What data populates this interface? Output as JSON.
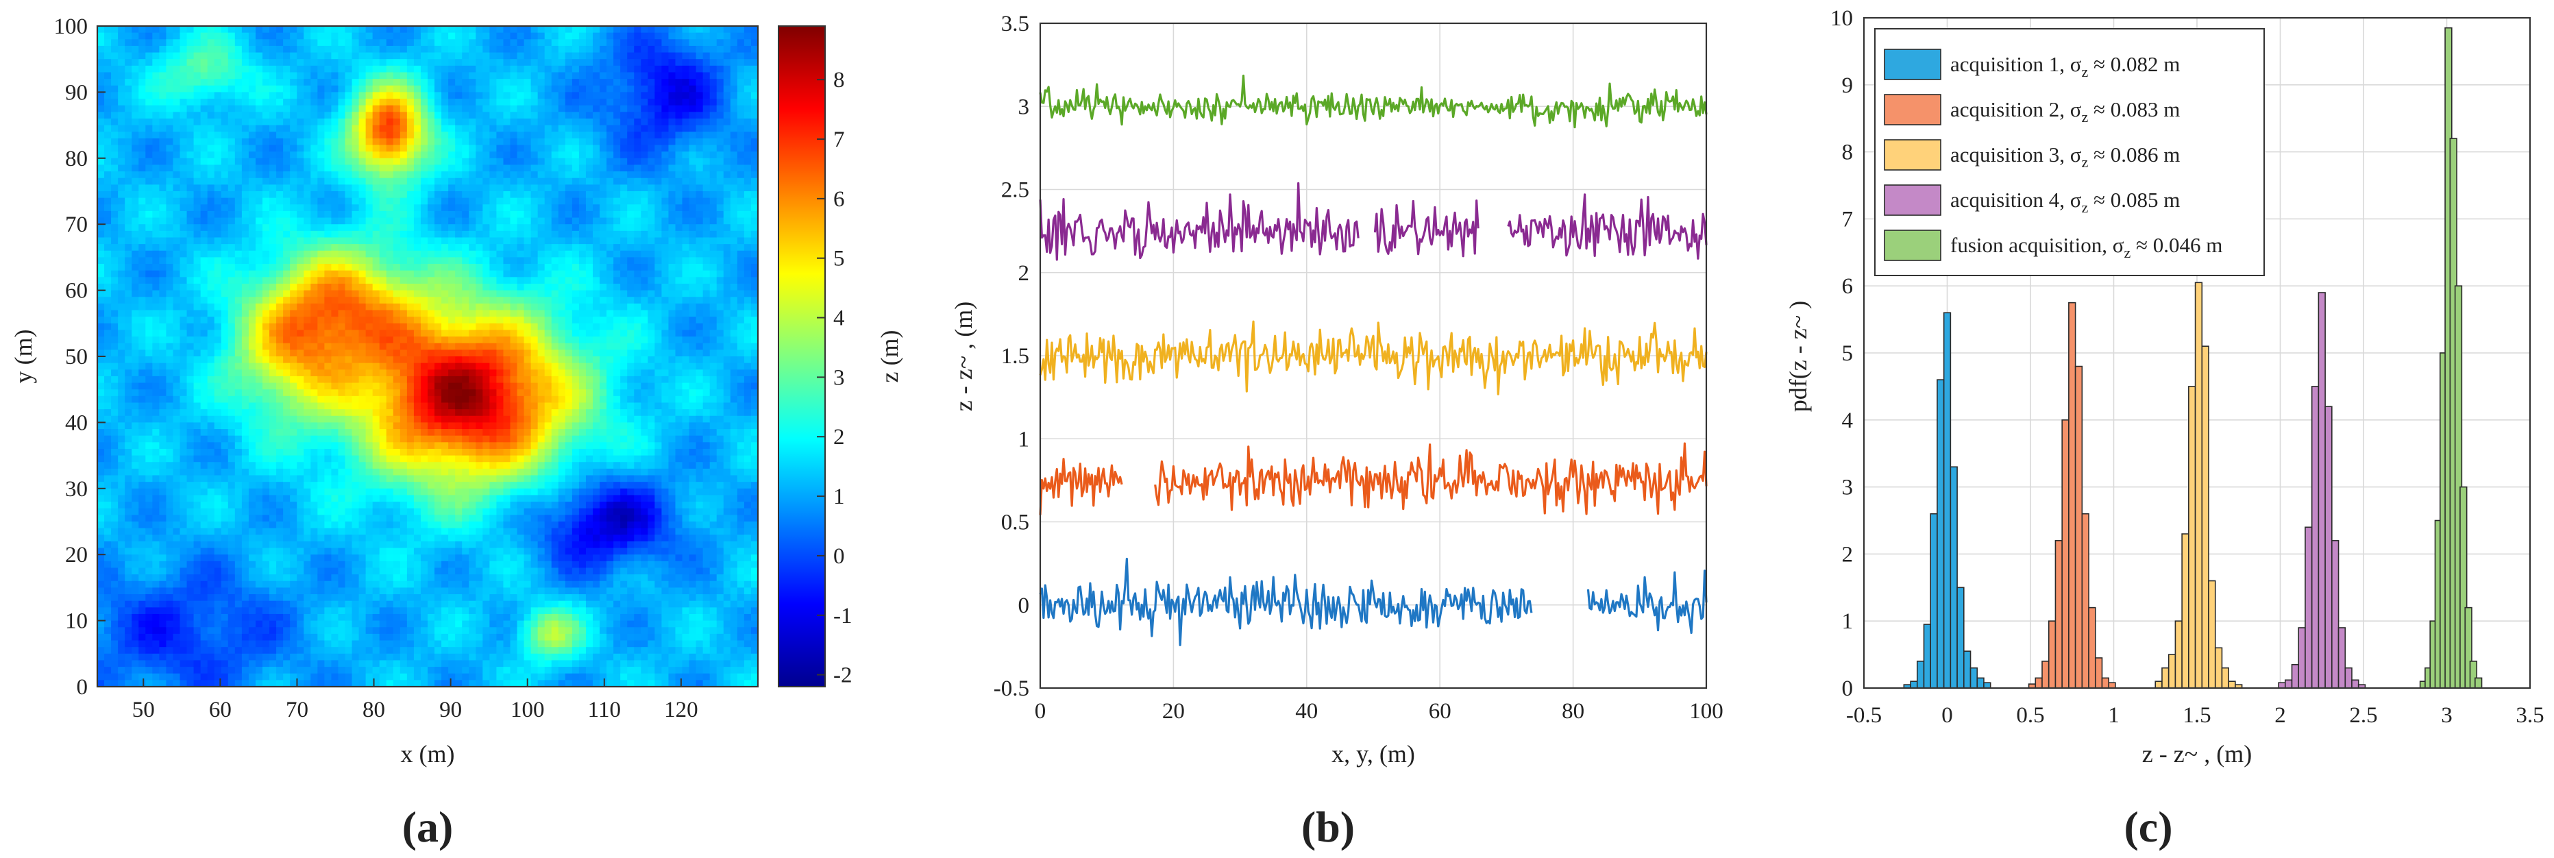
{
  "chart_data": [
    {
      "id": "a",
      "type": "heatmap",
      "panel_label": "(a)",
      "title": "",
      "xlabel": "x (m)",
      "ylabel": "y (m)",
      "xlim": [
        44,
        130
      ],
      "ylim": [
        0,
        100
      ],
      "xticks": [
        "50",
        "60",
        "70",
        "80",
        "90",
        "100",
        "110",
        "120"
      ],
      "yticks": [
        "0",
        "10",
        "20",
        "30",
        "40",
        "50",
        "60",
        "70",
        "80",
        "90",
        "100"
      ],
      "colorbar": {
        "label": "z (m)",
        "range": [
          -2.2,
          8.9
        ],
        "ticks": [
          "-2",
          "-1",
          "0",
          "1",
          "2",
          "3",
          "4",
          "5",
          "6",
          "7",
          "8"
        ]
      },
      "surface_features": [
        {
          "x": 90,
          "y": 45,
          "z": 8.2
        },
        {
          "x": 97,
          "y": 40,
          "z": 8.5
        },
        {
          "x": 82,
          "y": 85,
          "z": 7.8
        },
        {
          "x": 76,
          "y": 60,
          "z": 5.0
        },
        {
          "x": 110,
          "y": 25,
          "z": -1.0
        },
        {
          "x": 118,
          "y": 90,
          "z": -0.8
        },
        {
          "x": 100,
          "y": 92,
          "z": 0.6
        },
        {
          "x": 55,
          "y": 10,
          "z": 0.5
        },
        {
          "x": 103,
          "y": 8,
          "z": 4.0
        },
        {
          "x": 58,
          "y": 93,
          "z": 3.0
        }
      ]
    },
    {
      "id": "b",
      "type": "line",
      "panel_label": "(b)",
      "title": "",
      "xlabel": "x, y, (m)",
      "ylabel": "z - z~ , (m)",
      "xlim": [
        0,
        100
      ],
      "ylim": [
        -0.5,
        3.5
      ],
      "xticks": [
        "0",
        "20",
        "40",
        "60",
        "80",
        "100"
      ],
      "yticks": [
        "-0.5",
        "0",
        "0.5",
        "1",
        "1.5",
        "2",
        "2.5",
        "3",
        "3.5"
      ],
      "series": [
        {
          "name": "acquisition 1",
          "color": "#1f77c4",
          "offset": 0.0,
          "noise": 0.08,
          "gaps": [
            [
              74,
              82
            ]
          ]
        },
        {
          "name": "acquisition 2",
          "color": "#ea5b1b",
          "offset": 0.75,
          "noise": 0.08,
          "gaps": [
            [
              12.5,
              14
            ],
            [
              14.5,
              17
            ]
          ]
        },
        {
          "name": "acquisition 3",
          "color": "#f0b11f",
          "offset": 1.5,
          "noise": 0.085,
          "gaps": []
        },
        {
          "name": "acquisition 4",
          "color": "#8a2a91",
          "offset": 2.25,
          "noise": 0.085,
          "gaps": [
            [
              48,
              50
            ],
            [
              66,
              70
            ]
          ]
        },
        {
          "name": "fusion acquisition",
          "color": "#5ba827",
          "offset": 3.0,
          "noise": 0.045,
          "gaps": []
        }
      ]
    },
    {
      "id": "c",
      "type": "bar",
      "panel_label": "(c)",
      "title": "",
      "xlabel": "z - z~ , (m)",
      "ylabel": "pdf(z - z~ )",
      "xlim": [
        -0.5,
        3.5
      ],
      "ylim": [
        0,
        10
      ],
      "xticks": [
        "-0.5",
        "0",
        "0.5",
        "1",
        "1.5",
        "2",
        "2.5",
        "3",
        "3.5"
      ],
      "yticks": [
        "0",
        "1",
        "2",
        "3",
        "4",
        "5",
        "6",
        "7",
        "8",
        "9",
        "10"
      ],
      "bin_width": 0.04,
      "series": [
        {
          "name": "acquisition 1",
          "sigma_label": "0.082 m",
          "color": "#2ea8e0",
          "bin_starts": [
            -0.26,
            -0.22,
            -0.18,
            -0.14,
            -0.1,
            -0.06,
            -0.02,
            0.02,
            0.06,
            0.1,
            0.14,
            0.18,
            0.22
          ],
          "values": [
            0.05,
            0.1,
            0.4,
            0.95,
            2.6,
            4.6,
            5.6,
            3.3,
            1.5,
            0.55,
            0.3,
            0.15,
            0.08
          ]
        },
        {
          "name": "acquisition 2",
          "sigma_label": "0.083 m",
          "color": "#f5926a",
          "bin_starts": [
            0.49,
            0.53,
            0.57,
            0.61,
            0.65,
            0.69,
            0.73,
            0.77,
            0.81,
            0.85,
            0.89,
            0.93,
            0.97
          ],
          "values": [
            0.06,
            0.15,
            0.4,
            1.0,
            2.2,
            4.0,
            5.75,
            4.8,
            2.6,
            1.2,
            0.45,
            0.15,
            0.08
          ]
        },
        {
          "name": "acquisition 3",
          "sigma_label": "0.086 m",
          "color": "#ffd27a",
          "bin_starts": [
            1.25,
            1.29,
            1.33,
            1.37,
            1.41,
            1.45,
            1.49,
            1.53,
            1.57,
            1.61,
            1.65,
            1.69,
            1.73
          ],
          "values": [
            0.1,
            0.3,
            0.5,
            1.0,
            2.3,
            4.5,
            6.05,
            5.1,
            1.6,
            0.6,
            0.3,
            0.1,
            0.05
          ]
        },
        {
          "name": "acquisition 4",
          "sigma_label": "0.085 m",
          "color": "#c489c7",
          "bin_starts": [
            1.99,
            2.03,
            2.07,
            2.11,
            2.15,
            2.19,
            2.23,
            2.27,
            2.31,
            2.35,
            2.39,
            2.43,
            2.47
          ],
          "values": [
            0.08,
            0.12,
            0.35,
            0.9,
            2.4,
            4.5,
            5.9,
            4.2,
            2.2,
            0.9,
            0.3,
            0.12,
            0.05
          ]
        },
        {
          "name": "fusion acquisition",
          "sigma_label": "0.046 m",
          "color": "#9bd07b",
          "bin_starts": [
            2.84,
            2.87,
            2.9,
            2.93,
            2.96,
            2.99,
            3.02,
            3.05,
            3.08,
            3.11,
            3.14,
            3.17
          ],
          "values": [
            0.1,
            0.3,
            1.0,
            2.5,
            5.0,
            9.85,
            8.2,
            6.0,
            3.0,
            1.2,
            0.4,
            0.15
          ]
        }
      ],
      "legend": {
        "position": "top-left",
        "entries": [
          "acquisition 1, σz ≈ 0.082 m",
          "acquisition 2, σz ≈ 0.083 m",
          "acquisition 3, σz ≈ 0.086 m",
          "acquisition 4, σz ≈ 0.085 m",
          "fusion acquisition, σz ≈ 0.046 m"
        ]
      }
    }
  ]
}
